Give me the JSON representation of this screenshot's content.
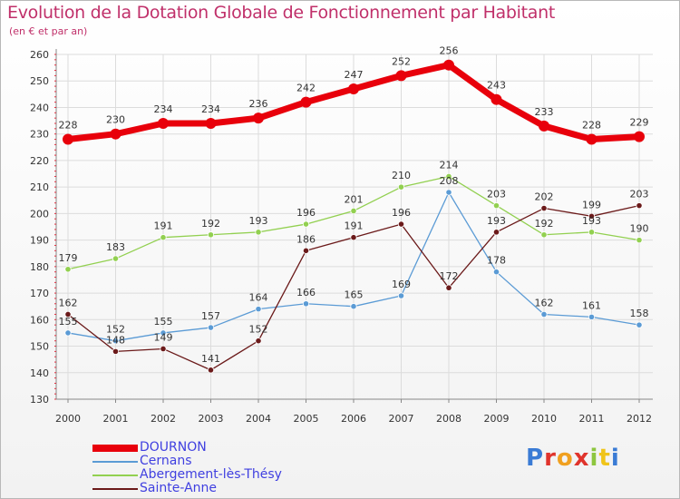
{
  "header": {
    "title": "Evolution de la Dotation Globale de Fonctionnement par Habitant",
    "subtitle": "(en € et par an)"
  },
  "logo": {
    "text": "Proxiti",
    "letter_colors": [
      "#3a7bd5",
      "#e0342c",
      "#f0a020",
      "#e0342c",
      "#8dc63f",
      "#f0c419",
      "#3a7bd5"
    ]
  },
  "chart_data": {
    "type": "line",
    "title": "Evolution de la Dotation Globale de Fonctionnement par Habitant",
    "subtitle": "(en € et par an)",
    "xlabel": "",
    "ylabel": "",
    "ylim": [
      130,
      260
    ],
    "ytick_step": 10,
    "grid": true,
    "legend_position": "bottom-left",
    "categories": [
      "2000",
      "2001",
      "2002",
      "2003",
      "2004",
      "2005",
      "2006",
      "2007",
      "2008",
      "2009",
      "2010",
      "2011",
      "2012"
    ],
    "series": [
      {
        "name": "DOURNON",
        "color": "#e8000b",
        "values": [
          228,
          230,
          234,
          234,
          236,
          242,
          247,
          252,
          256,
          243,
          233,
          228,
          229
        ]
      },
      {
        "name": "Cernans",
        "color": "#5b9bd5",
        "values": [
          155,
          152,
          155,
          157,
          164,
          166,
          165,
          169,
          208,
          178,
          162,
          161,
          158
        ]
      },
      {
        "name": "Abergement-lès-Thésy",
        "color": "#92d050",
        "values": [
          179,
          183,
          191,
          192,
          193,
          196,
          201,
          210,
          214,
          203,
          192,
          193,
          190
        ]
      },
      {
        "name": "Sainte-Anne",
        "color": "#6b1a1a",
        "values": [
          162,
          148,
          149,
          141,
          152,
          186,
          191,
          196,
          172,
          193,
          202,
          199,
          203
        ]
      }
    ]
  }
}
